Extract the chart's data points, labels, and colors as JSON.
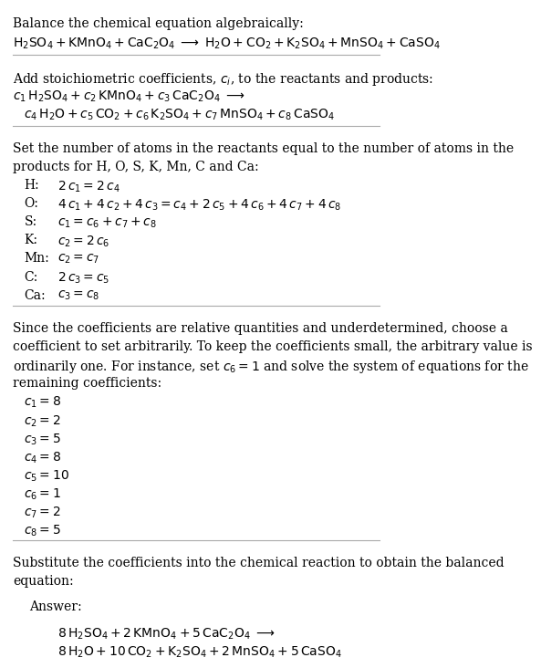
{
  "bg_color": "#ffffff",
  "text_color": "#000000",
  "section1_title": "Balance the chemical equation algebraically:",
  "section2_title": "Add stoichiometric coefficients, $c_i$, to the reactants and products:",
  "section3_title_l1": "Set the number of atoms in the reactants equal to the number of atoms in the",
  "section3_title_l2": "products for H, O, S, K, Mn, C and Ca:",
  "section4_title_l1": "Since the coefficients are relative quantities and underdetermined, choose a",
  "section4_title_l2": "coefficient to set arbitrarily. To keep the coefficients small, the arbitrary value is",
  "section4_title_l3": "ordinarily one. For instance, set $c_6 = 1$ and solve the system of equations for the",
  "section4_title_l4": "remaining coefficients:",
  "section5_title_l1": "Substitute the coefficients into the chemical reaction to obtain the balanced",
  "section5_title_l2": "equation:",
  "answer_label": "Answer:",
  "answer_box_color": "#d6eaf8",
  "answer_box_border": "#a9cce3",
  "separator_color": "#aaaaaa",
  "font_size": 10,
  "lh": 0.032
}
